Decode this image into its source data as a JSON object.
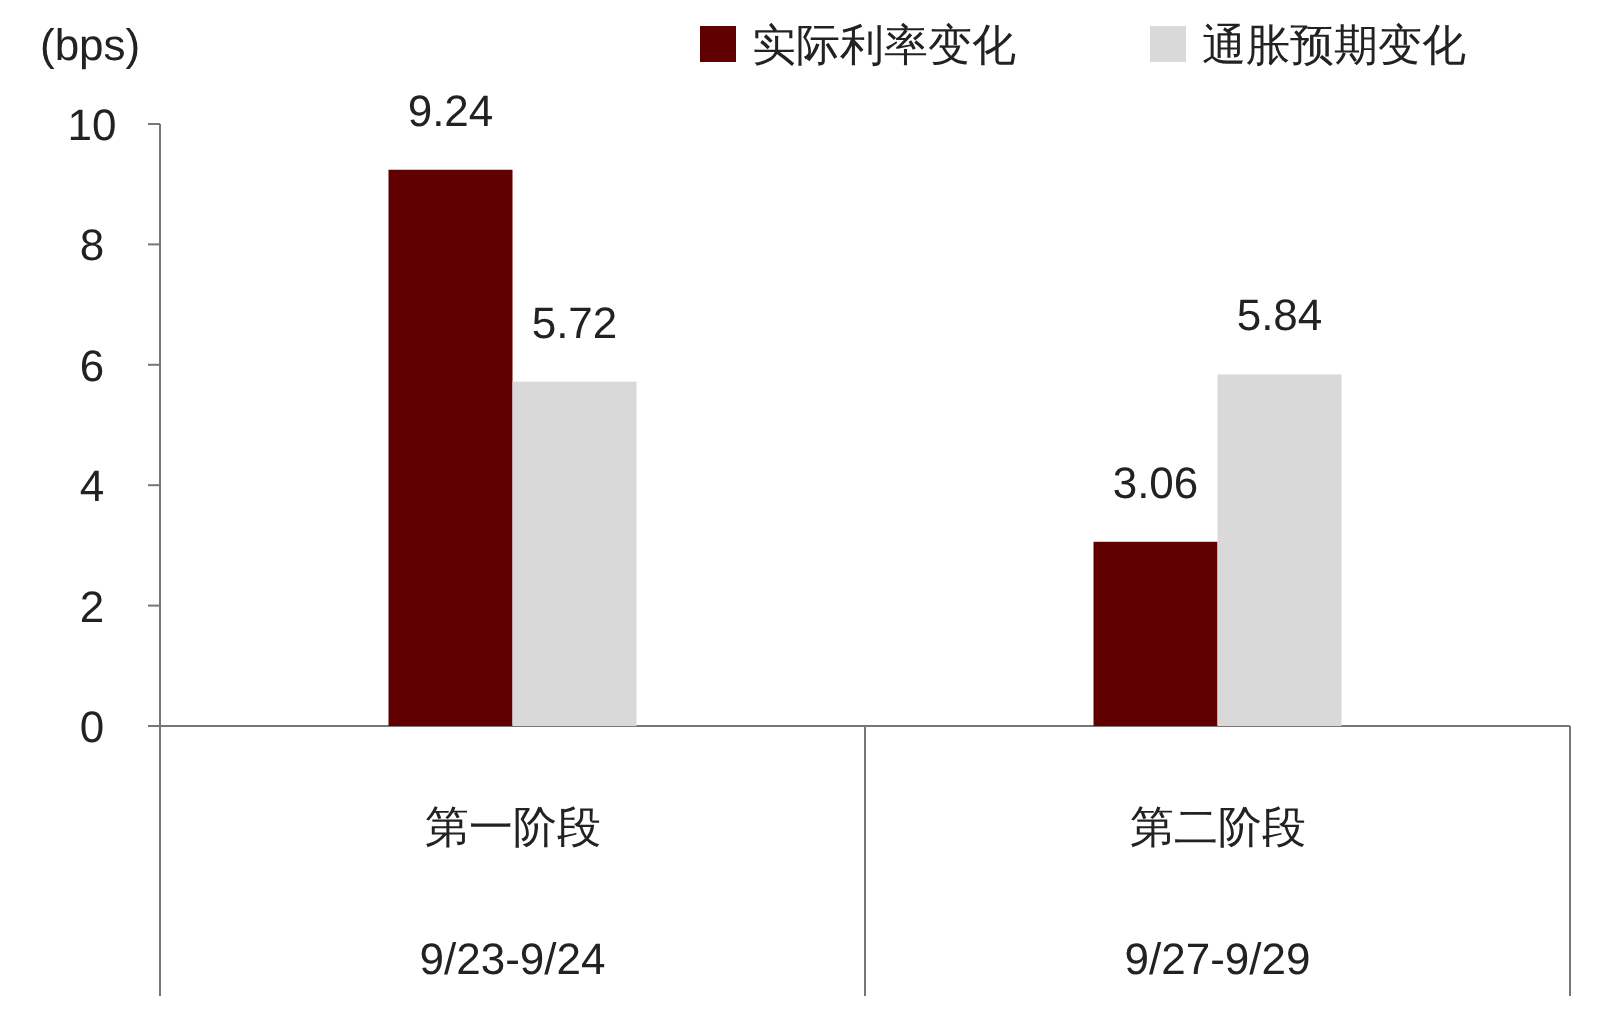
{
  "chart_data": {
    "type": "bar",
    "ylabel": "(bps)",
    "categories": [
      "第一阶段\n9/23-9/24",
      "第二阶段\n9/27-9/29"
    ],
    "series": [
      {
        "name": "实际利率变化",
        "color": "#600000",
        "values": [
          9.24,
          3.06
        ]
      },
      {
        "name": "通胀预期变化",
        "color": "#d9d9d9",
        "values": [
          5.72,
          5.84
        ]
      }
    ],
    "ylim": [
      0,
      10
    ],
    "yticks": [
      0,
      2,
      4,
      6,
      8,
      10
    ],
    "grid": false,
    "legend": "top right",
    "data_labels": true
  }
}
